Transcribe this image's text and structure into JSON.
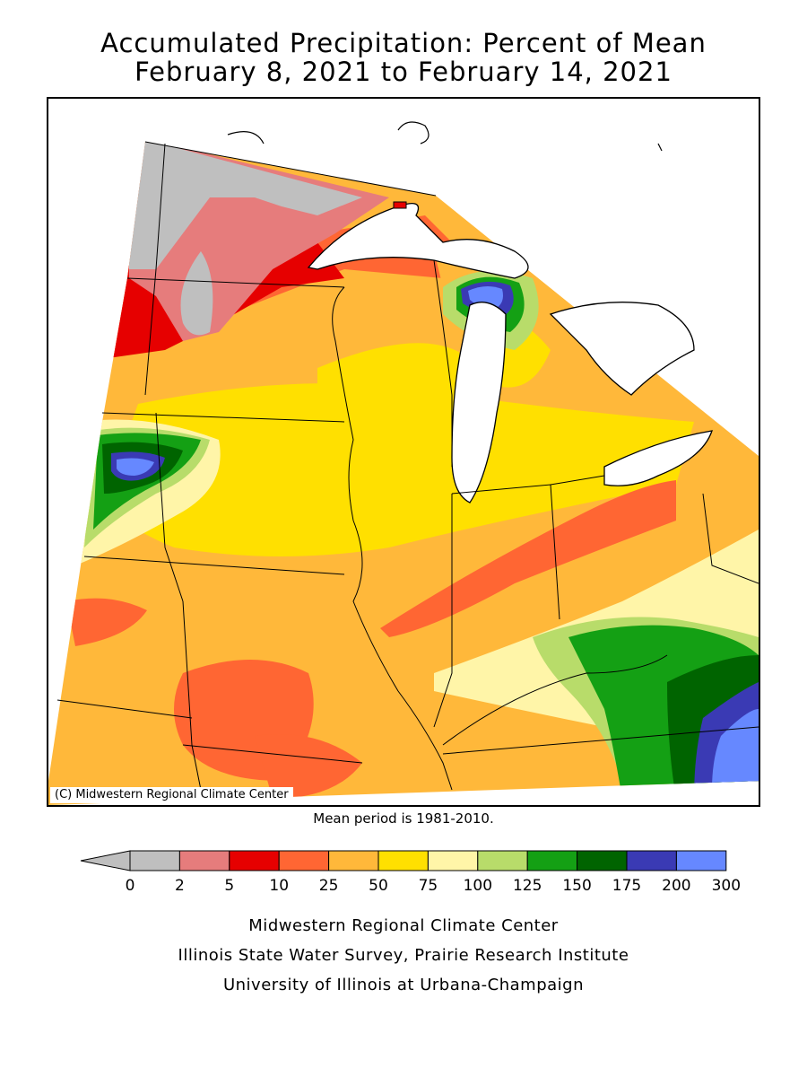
{
  "title": {
    "line1": "Accumulated Precipitation: Percent of Mean",
    "line2": "February 8, 2021 to February 14, 2021"
  },
  "map": {
    "copyright": "(C) Midwestern Regional Climate Center"
  },
  "mean_note": "Mean period is 1981-2010.",
  "legend": {
    "breaks": [
      "0",
      "2",
      "5",
      "10",
      "25",
      "50",
      "75",
      "100",
      "125",
      "150",
      "175",
      "200",
      "300"
    ],
    "colors": [
      "#bfbfbf",
      "#e67c7c",
      "#e60000",
      "#ff6633",
      "#ffb83a",
      "#ffe000",
      "#fff5a8",
      "#b8dc6a",
      "#14a014",
      "#006400",
      "#3a3ab4",
      "#6688ff"
    ],
    "arrow_color": "#bfbfbf"
  },
  "colors": {
    "gray": "#bfbfbf",
    "pink": "#e67c7c",
    "red": "#e60000",
    "orange_red": "#ff6633",
    "orange": "#ffb83a",
    "yellow": "#ffe000",
    "light_yellow": "#fff5a8",
    "light_green": "#b8dc6a",
    "green": "#14a014",
    "dark_green": "#006400",
    "dark_blue": "#3a3ab4",
    "blue": "#6688ff"
  },
  "credits": {
    "line1": "Midwestern Regional Climate Center",
    "line2": "Illinois State Water Survey, Prairie Research Institute",
    "line3": "University of Illinois at Urbana-Champaign"
  }
}
